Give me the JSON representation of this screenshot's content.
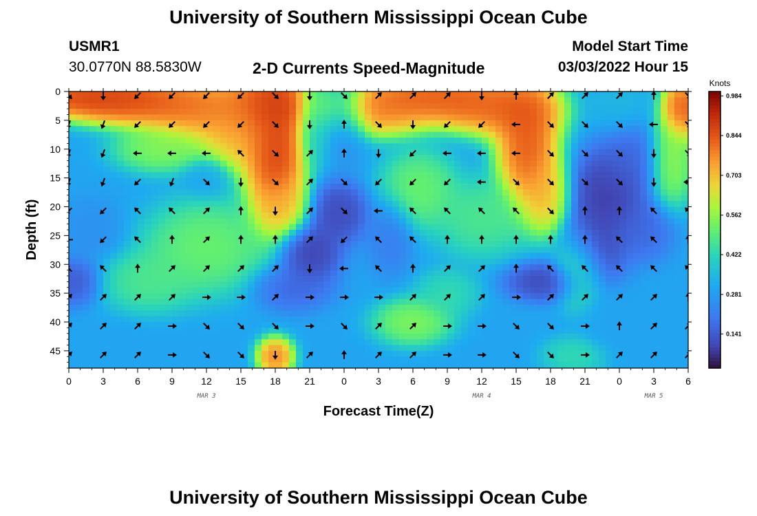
{
  "header": {
    "title": "University of Southern Mississippi Ocean Cube",
    "station_id": "USMR1",
    "coordinates": "30.0770N  88.5830W",
    "model_start_label": "Model Start Time",
    "model_start_value": "03/03/2022 Hour 15"
  },
  "footer": {
    "title": "University of Southern Mississippi Ocean Cube"
  },
  "colors": {
    "arrow": "#000000",
    "axis": "#000000"
  },
  "chart_data": {
    "type": "heatmap",
    "title": "2-D Currents Speed-Magnitude",
    "xlabel": "Forecast Time(Z)",
    "ylabel": "Depth (ft)",
    "x_ticks": [
      "0",
      "3",
      "6",
      "9",
      "12",
      "15",
      "18",
      "21",
      "0",
      "3",
      "6",
      "9",
      "12",
      "15",
      "18",
      "21",
      "0",
      "3",
      "6"
    ],
    "x_range_hours": [
      0,
      54
    ],
    "date_labels": [
      {
        "text": "MAR 3",
        "hour": 12
      },
      {
        "text": "MAR 4",
        "hour": 36
      },
      {
        "text": "MAR 5",
        "hour": 51
      }
    ],
    "y_ticks": [
      "0",
      "5",
      "10",
      "15",
      "20",
      "25",
      "30",
      "35",
      "40",
      "45"
    ],
    "y_range_ft": [
      0,
      48
    ],
    "y_inverted": true,
    "colorbar": {
      "unit": "Knots",
      "ticks": [
        "0.984",
        "0.844",
        "0.703",
        "0.562",
        "0.422",
        "0.281",
        "0.141"
      ],
      "range": [
        0.02,
        1.0
      ]
    },
    "features": [
      {
        "hour": 2,
        "depth": 1,
        "speed": 0.95,
        "width_h": 5,
        "width_d": 2.5
      },
      {
        "hour": 6,
        "depth": 2,
        "speed": 0.9,
        "width_h": 5,
        "width_d": 3
      },
      {
        "hour": 11,
        "depth": 3,
        "speed": 0.85,
        "width_h": 4,
        "width_d": 4
      },
      {
        "hour": 15,
        "depth": 6,
        "speed": 0.8,
        "width_h": 3,
        "width_d": 6
      },
      {
        "hour": 18,
        "depth": 10,
        "speed": 0.97,
        "width_h": 2,
        "width_d": 10
      },
      {
        "hour": 18.5,
        "depth": 20,
        "speed": 0.72,
        "width_h": 1.8,
        "width_d": 4
      },
      {
        "hour": 17.5,
        "depth": 2,
        "speed": 0.95,
        "width_h": 3,
        "width_d": 4
      },
      {
        "hour": 8,
        "depth": 10,
        "speed": 0.58,
        "width_h": 3,
        "width_d": 3
      },
      {
        "hour": 12,
        "depth": 15,
        "speed": 0.3,
        "width_h": 1.5,
        "width_d": 2.5
      },
      {
        "hour": 12,
        "depth": 27,
        "speed": 0.55,
        "width_h": 4,
        "width_d": 6
      },
      {
        "hour": 7,
        "depth": 33,
        "speed": 0.5,
        "width_h": 3,
        "width_d": 4
      },
      {
        "hour": 0.5,
        "depth": 33,
        "speed": 0.12,
        "width_h": 1.6,
        "width_d": 3
      },
      {
        "hour": 2,
        "depth": 24,
        "speed": 0.25,
        "width_h": 2,
        "width_d": 4
      },
      {
        "hour": 5,
        "depth": 45,
        "speed": 0.3,
        "width_h": 3,
        "width_d": 3
      },
      {
        "hour": 18,
        "depth": 46,
        "speed": 0.85,
        "width_h": 1.2,
        "width_d": 2.5
      },
      {
        "hour": 21,
        "depth": 28,
        "speed": 0.06,
        "width_h": 2,
        "width_d": 4
      },
      {
        "hour": 23.5,
        "depth": 21,
        "speed": 0.08,
        "width_h": 2,
        "width_d": 4
      },
      {
        "hour": 19.5,
        "depth": 34,
        "speed": 0.15,
        "width_h": 2.5,
        "width_d": 3
      },
      {
        "hour": 24,
        "depth": 5,
        "speed": 0.25,
        "width_h": 1.5,
        "width_d": 6
      },
      {
        "hour": 21.5,
        "depth": 5,
        "speed": 0.4,
        "width_h": 1.2,
        "width_d": 6
      },
      {
        "hour": 27,
        "depth": 3,
        "speed": 0.85,
        "width_h": 4,
        "width_d": 3.5
      },
      {
        "hour": 31,
        "depth": 1,
        "speed": 0.9,
        "width_h": 4,
        "width_d": 3
      },
      {
        "hour": 35,
        "depth": 2,
        "speed": 0.88,
        "width_h": 3,
        "width_d": 3.5
      },
      {
        "hour": 39,
        "depth": 3,
        "speed": 0.9,
        "width_h": 3,
        "width_d": 4
      },
      {
        "hour": 40,
        "depth": 10,
        "speed": 0.92,
        "width_h": 2,
        "width_d": 8
      },
      {
        "hour": 41.5,
        "depth": 18,
        "speed": 0.75,
        "width_h": 1.6,
        "width_d": 5
      },
      {
        "hour": 30.5,
        "depth": 17,
        "speed": 0.55,
        "width_h": 2.5,
        "width_d": 5
      },
      {
        "hour": 36,
        "depth": 22,
        "speed": 0.5,
        "width_h": 3,
        "width_d": 5
      },
      {
        "hour": 30,
        "depth": 40,
        "speed": 0.58,
        "width_h": 2.5,
        "width_d": 3
      },
      {
        "hour": 33,
        "depth": 35,
        "speed": 0.45,
        "width_h": 2,
        "width_d": 3
      },
      {
        "hour": 28,
        "depth": 25,
        "speed": 0.2,
        "width_h": 1.5,
        "width_d": 5
      },
      {
        "hour": 41.5,
        "depth": 33,
        "speed": 0.08,
        "width_h": 2.5,
        "width_d": 2.5
      },
      {
        "hour": 44.5,
        "depth": 31,
        "speed": 0.5,
        "width_h": 1.6,
        "width_d": 5
      },
      {
        "hour": 47,
        "depth": 18,
        "speed": 0.05,
        "width_h": 2.5,
        "width_d": 6
      },
      {
        "hour": 46,
        "depth": 27,
        "speed": 0.08,
        "width_h": 2,
        "width_d": 5
      },
      {
        "hour": 49,
        "depth": 12,
        "speed": 0.15,
        "width_h": 2,
        "width_d": 5
      },
      {
        "hour": 50,
        "depth": 24,
        "speed": 0.15,
        "width_h": 2,
        "width_d": 4
      },
      {
        "hour": 48,
        "depth": 2,
        "speed": 0.35,
        "width_h": 2,
        "width_d": 4
      },
      {
        "hour": 53.5,
        "depth": 3,
        "speed": 0.92,
        "width_h": 1.4,
        "width_d": 4
      },
      {
        "hour": 52.5,
        "depth": 12,
        "speed": 0.6,
        "width_h": 1.5,
        "width_d": 6
      },
      {
        "hour": 52,
        "depth": 46,
        "speed": 0.3,
        "width_h": 2,
        "width_d": 3
      },
      {
        "hour": 47.5,
        "depth": 40,
        "speed": 0.3,
        "width_h": 2,
        "width_d": 4
      },
      {
        "hour": 44,
        "depth": 46,
        "speed": 0.45,
        "width_h": 2,
        "width_d": 2.5
      }
    ],
    "background_speed": 0.3,
    "arrow_grid": {
      "hours": [
        0,
        3,
        6,
        9,
        12,
        15,
        18,
        21,
        24,
        27,
        30,
        33,
        36,
        39,
        42,
        45,
        48,
        51,
        54
      ],
      "depths": [
        0,
        5,
        10,
        15,
        20,
        25,
        30,
        35,
        40,
        45
      ],
      "directions_deg": [
        [
          135,
          180,
          225,
          225,
          225,
          225,
          135,
          180,
          135,
          45,
          45,
          45,
          180,
          0,
          45,
          45,
          45,
          0,
          135
        ],
        [
          200,
          200,
          225,
          225,
          225,
          225,
          135,
          180,
          0,
          135,
          180,
          225,
          225,
          270,
          135,
          135,
          135,
          270,
          135
        ],
        [
          200,
          200,
          270,
          270,
          270,
          315,
          135,
          45,
          0,
          180,
          225,
          270,
          270,
          270,
          135,
          135,
          135,
          180,
          135
        ],
        [
          200,
          200,
          225,
          200,
          135,
          180,
          135,
          45,
          135,
          225,
          225,
          225,
          270,
          135,
          135,
          135,
          135,
          180,
          270
        ],
        [
          225,
          225,
          315,
          315,
          45,
          0,
          180,
          45,
          135,
          270,
          315,
          315,
          315,
          315,
          135,
          0,
          0,
          315,
          315
        ],
        [
          270,
          225,
          315,
          0,
          45,
          0,
          0,
          45,
          225,
          315,
          315,
          0,
          0,
          0,
          0,
          0,
          315,
          315,
          0
        ],
        [
          315,
          315,
          0,
          45,
          45,
          45,
          45,
          180,
          270,
          315,
          0,
          45,
          45,
          0,
          315,
          315,
          315,
          315,
          315
        ],
        [
          45,
          45,
          45,
          45,
          90,
          90,
          45,
          90,
          90,
          90,
          45,
          45,
          45,
          90,
          45,
          45,
          45,
          45,
          0
        ],
        [
          45,
          45,
          45,
          90,
          135,
          135,
          135,
          90,
          135,
          45,
          45,
          90,
          90,
          135,
          135,
          90,
          0,
          45,
          45
        ],
        [
          45,
          45,
          45,
          90,
          135,
          135,
          180,
          45,
          0,
          45,
          45,
          90,
          90,
          135,
          135,
          90,
          45,
          45,
          45
        ]
      ]
    }
  }
}
